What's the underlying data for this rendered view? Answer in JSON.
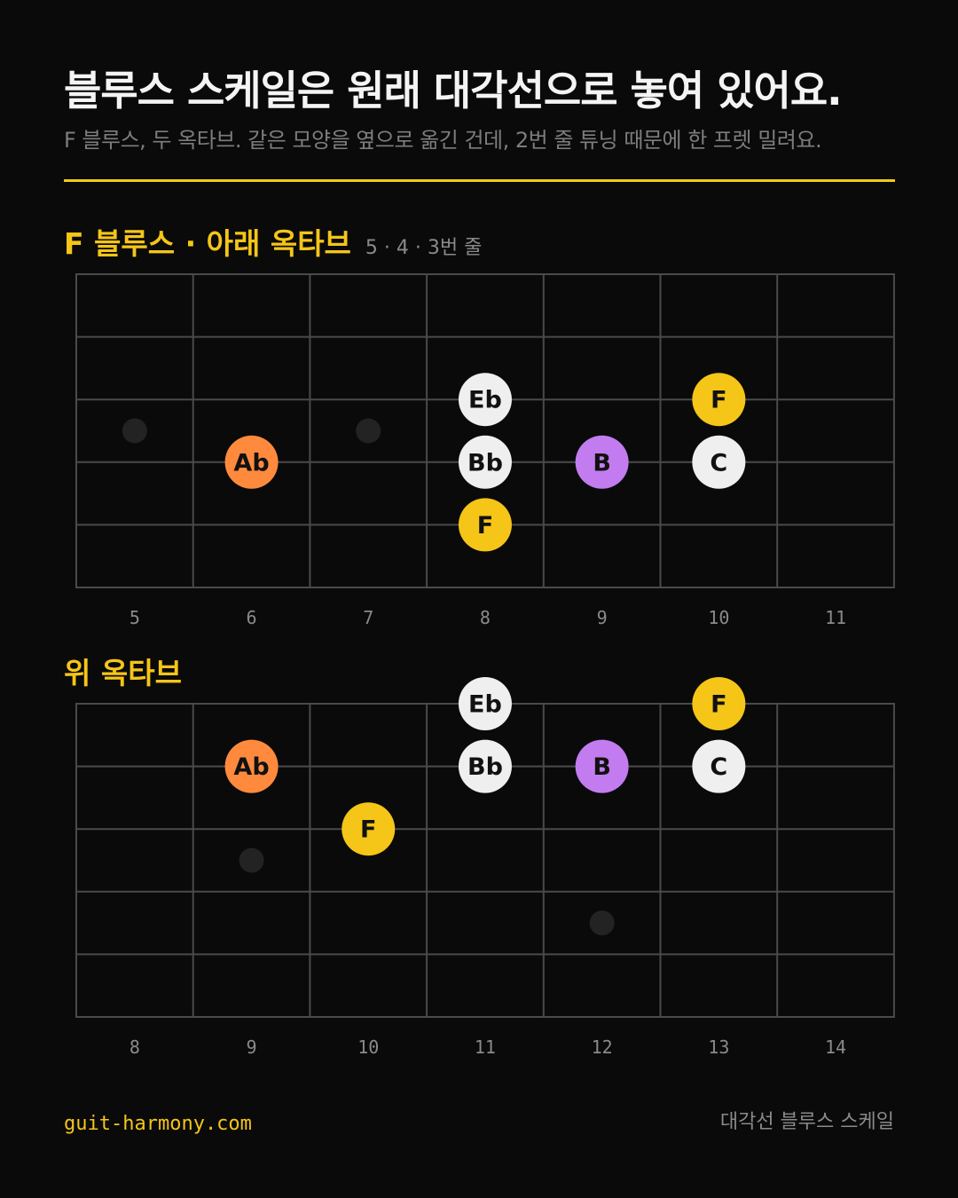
{
  "title": "블루스 스케일은 원래 대각선으로 놓여 있어요.",
  "subtitle": "F 블루스, 두 옥타브. 같은 모양을 옆으로 옮긴 건데, 2번 줄 튜닝 때문에 한 프렛 밀려요.",
  "colors": {
    "accent": "#f5c518",
    "root": "#f5c518",
    "blue_note": "#ff8a3d",
    "passing": "#c27cf0",
    "scale_tone": "#efefef"
  },
  "diagrams": [
    {
      "title": "F 블루스 · 아래 옥타브",
      "note": "5 · 4 · 3번 줄",
      "frets": [
        "5",
        "6",
        "7",
        "8",
        "9",
        "10",
        "11"
      ],
      "inlays": [
        {
          "fret_index": 0,
          "string_gap": 2
        },
        {
          "fret_index": 2,
          "string_gap": 2
        }
      ],
      "notes": [
        {
          "label": "Eb",
          "fret_index": 3,
          "line": 2,
          "role": "scale_tone"
        },
        {
          "label": "F",
          "fret_index": 5,
          "line": 2,
          "role": "root"
        },
        {
          "label": "Ab",
          "fret_index": 1,
          "line": 3,
          "role": "blue_note"
        },
        {
          "label": "Bb",
          "fret_index": 3,
          "line": 3,
          "role": "scale_tone"
        },
        {
          "label": "B",
          "fret_index": 4,
          "line": 3,
          "role": "passing"
        },
        {
          "label": "C",
          "fret_index": 5,
          "line": 3,
          "role": "scale_tone"
        },
        {
          "label": "F",
          "fret_index": 3,
          "line": 4,
          "role": "root"
        }
      ]
    },
    {
      "title": "위 옥타브",
      "note": "",
      "frets": [
        "8",
        "9",
        "10",
        "11",
        "12",
        "13",
        "14"
      ],
      "inlays": [
        {
          "fret_index": 1,
          "string_gap": 2
        },
        {
          "fret_index": 4,
          "string_gap": 3
        }
      ],
      "notes": [
        {
          "label": "Eb",
          "fret_index": 3,
          "line": 0,
          "role": "scale_tone"
        },
        {
          "label": "F",
          "fret_index": 5,
          "line": 0,
          "role": "root"
        },
        {
          "label": "Ab",
          "fret_index": 1,
          "line": 1,
          "role": "blue_note"
        },
        {
          "label": "Bb",
          "fret_index": 3,
          "line": 1,
          "role": "scale_tone"
        },
        {
          "label": "B",
          "fret_index": 4,
          "line": 1,
          "role": "passing"
        },
        {
          "label": "C",
          "fret_index": 5,
          "line": 1,
          "role": "scale_tone"
        },
        {
          "label": "F",
          "fret_index": 2,
          "line": 2,
          "role": "root"
        }
      ]
    }
  ],
  "footer": {
    "site": "guit-harmony.com",
    "series": "대각선 블루스 스케일"
  }
}
